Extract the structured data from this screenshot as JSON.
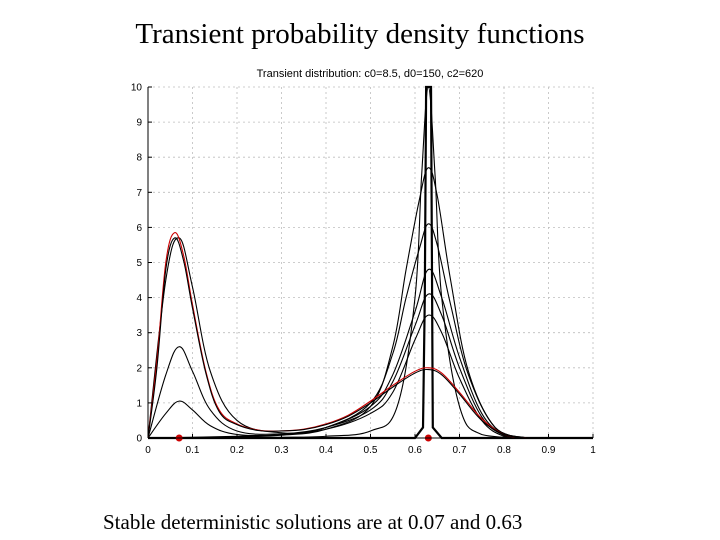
{
  "slide": {
    "title": "Transient probability density functions",
    "footer": "Stable deterministic solutions are at 0.07 and 0.63"
  },
  "chart_data": {
    "type": "line",
    "title": "Transient distribution: c0=8.5, d0=150, c2=620",
    "xlabel": "",
    "ylabel": "",
    "xlim": [
      0,
      1
    ],
    "ylim": [
      0,
      10
    ],
    "xticks": [
      "0",
      "0.1",
      "0.2",
      "0.3",
      "0.4",
      "0.5",
      "0.6",
      "0.7",
      "0.8",
      "0.9",
      "1"
    ],
    "yticks": [
      "0",
      "1",
      "2",
      "3",
      "4",
      "5",
      "6",
      "7",
      "8",
      "9",
      "10"
    ],
    "grid": true,
    "series": [
      {
        "color": "#000000",
        "x": [
          0,
          0.04,
          0.07,
          0.1,
          0.14,
          0.2,
          0.3,
          0.4,
          0.5,
          0.55,
          0.6,
          0.63,
          0.66,
          0.7,
          0.75,
          0.8,
          0.85
        ],
        "y": [
          0,
          0.7,
          1.05,
          0.8,
          0.35,
          0.1,
          0.1,
          0.3,
          0.9,
          1.8,
          3.6,
          4.8,
          4.0,
          2.3,
          0.7,
          0.1,
          0
        ]
      },
      {
        "color": "#000000",
        "x": [
          0,
          0.04,
          0.07,
          0.1,
          0.14,
          0.2,
          0.3,
          0.4,
          0.5,
          0.55,
          0.6,
          0.63,
          0.66,
          0.7,
          0.75,
          0.8,
          0.85
        ],
        "y": [
          0,
          1.8,
          2.6,
          1.9,
          0.8,
          0.2,
          0.12,
          0.3,
          0.8,
          1.6,
          3.2,
          4.1,
          3.5,
          2.0,
          0.6,
          0.08,
          0
        ]
      },
      {
        "color": "#000000",
        "x": [
          0,
          0.04,
          0.07,
          0.1,
          0.14,
          0.2,
          0.3,
          0.4,
          0.5,
          0.55,
          0.6,
          0.63,
          0.66,
          0.7,
          0.75,
          0.8,
          0.85
        ],
        "y": [
          0,
          4.5,
          5.7,
          4.3,
          1.9,
          0.5,
          0.15,
          0.25,
          0.7,
          1.3,
          2.8,
          3.5,
          3.0,
          1.7,
          0.5,
          0.05,
          0
        ]
      },
      {
        "color": "#000000",
        "x": [
          0,
          0.1,
          0.2,
          0.3,
          0.4,
          0.5,
          0.55,
          0.58,
          0.61,
          0.63,
          0.65,
          0.68,
          0.72,
          0.78,
          0.85
        ],
        "y": [
          0,
          0.02,
          0.05,
          0.1,
          0.3,
          1.0,
          2.4,
          4.0,
          5.4,
          6.1,
          5.5,
          3.8,
          1.8,
          0.3,
          0
        ]
      },
      {
        "color": "#000000",
        "x": [
          0,
          0.1,
          0.2,
          0.3,
          0.4,
          0.5,
          0.55,
          0.58,
          0.61,
          0.63,
          0.65,
          0.68,
          0.72,
          0.78,
          0.85
        ],
        "y": [
          0,
          0.01,
          0.03,
          0.08,
          0.25,
          0.9,
          2.6,
          4.8,
          6.8,
          7.7,
          6.9,
          4.5,
          1.9,
          0.3,
          0
        ]
      },
      {
        "color": "#000000",
        "x": [
          0,
          0.1,
          0.2,
          0.3,
          0.4,
          0.5,
          0.56,
          0.6,
          0.615,
          0.63,
          0.645,
          0.66,
          0.7,
          0.75,
          0.85
        ],
        "y": [
          0,
          0,
          0.01,
          0.02,
          0.05,
          0.2,
          0.9,
          4.0,
          7.5,
          10.0,
          7.5,
          4.0,
          0.9,
          0.1,
          0
        ]
      },
      {
        "color": "#000000",
        "x": [
          0,
          0.6,
          0.618,
          0.622,
          0.625,
          0.628,
          0.632,
          0.636,
          0.64,
          0.66,
          1
        ],
        "y": [
          0,
          0,
          0.3,
          4.0,
          10.0,
          10.0,
          10.0,
          10.0,
          0.3,
          0,
          0
        ]
      },
      {
        "color": "#cc0000",
        "x": [
          0,
          0.02,
          0.04,
          0.06,
          0.08,
          0.1,
          0.13,
          0.16,
          0.2,
          0.25,
          0.3,
          0.35,
          0.4,
          0.45,
          0.5,
          0.55,
          0.6,
          0.63,
          0.66,
          0.7,
          0.75,
          0.8,
          0.85
        ],
        "y": [
          0,
          2.2,
          5.0,
          5.85,
          5.2,
          3.8,
          1.9,
          0.8,
          0.4,
          0.22,
          0.2,
          0.25,
          0.4,
          0.65,
          1.05,
          1.5,
          1.9,
          2.0,
          1.85,
          1.3,
          0.55,
          0.1,
          0
        ]
      },
      {
        "color": "#000000",
        "x": [
          0,
          0.02,
          0.04,
          0.06,
          0.08,
          0.1,
          0.13,
          0.16,
          0.2,
          0.25,
          0.3,
          0.35,
          0.4,
          0.45,
          0.5,
          0.55,
          0.6,
          0.63,
          0.66,
          0.7,
          0.75,
          0.8,
          0.85
        ],
        "y": [
          0,
          2.0,
          4.8,
          5.7,
          5.05,
          3.7,
          1.85,
          0.75,
          0.38,
          0.21,
          0.2,
          0.24,
          0.38,
          0.62,
          1.0,
          1.45,
          1.85,
          1.95,
          1.8,
          1.25,
          0.5,
          0.1,
          0
        ]
      }
    ],
    "markers": [
      {
        "x": 0.07,
        "y": 0,
        "color": "#cc0000"
      },
      {
        "x": 0.63,
        "y": 0,
        "color": "#cc0000"
      }
    ]
  }
}
